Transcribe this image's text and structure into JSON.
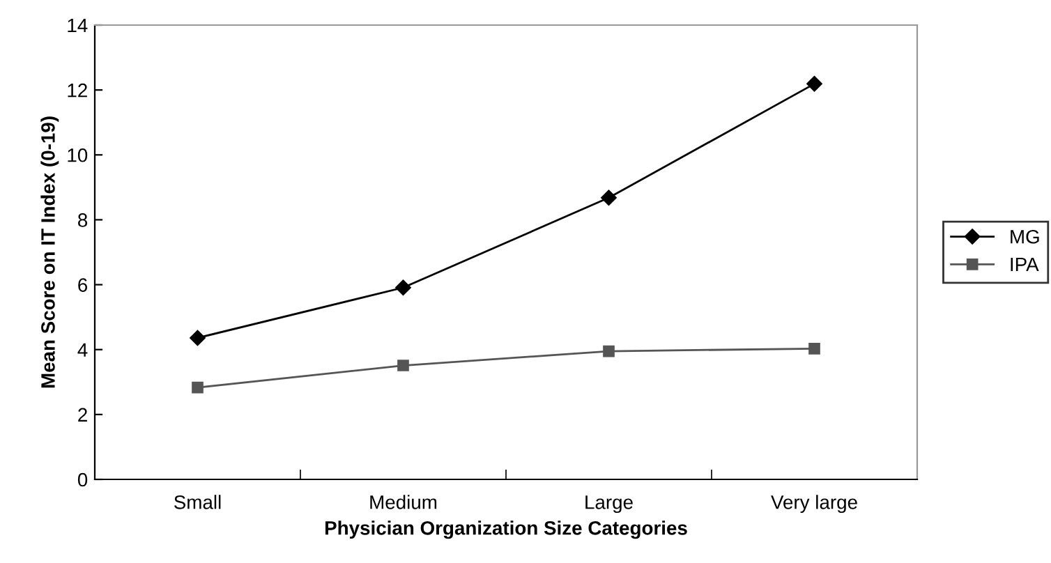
{
  "chart_data": {
    "type": "line",
    "xlabel": "Physician Organization Size Categories",
    "ylabel": "Mean Score on IT Index (0-19)",
    "categories": [
      "Small",
      "Medium",
      "Large",
      "Very large"
    ],
    "series": [
      {
        "name": "MG",
        "color": "#000000",
        "marker": "diamond",
        "values": [
          4.36,
          5.91,
          8.68,
          12.19
        ]
      },
      {
        "name": "IPA",
        "color": "#555555",
        "marker": "square",
        "values": [
          2.83,
          3.51,
          3.95,
          4.03
        ]
      }
    ],
    "ylim": [
      0,
      14
    ],
    "yticks": [
      0,
      2,
      4,
      6,
      8,
      10,
      12,
      14
    ],
    "grid": false,
    "legend": "right",
    "line_style": "solid"
  }
}
